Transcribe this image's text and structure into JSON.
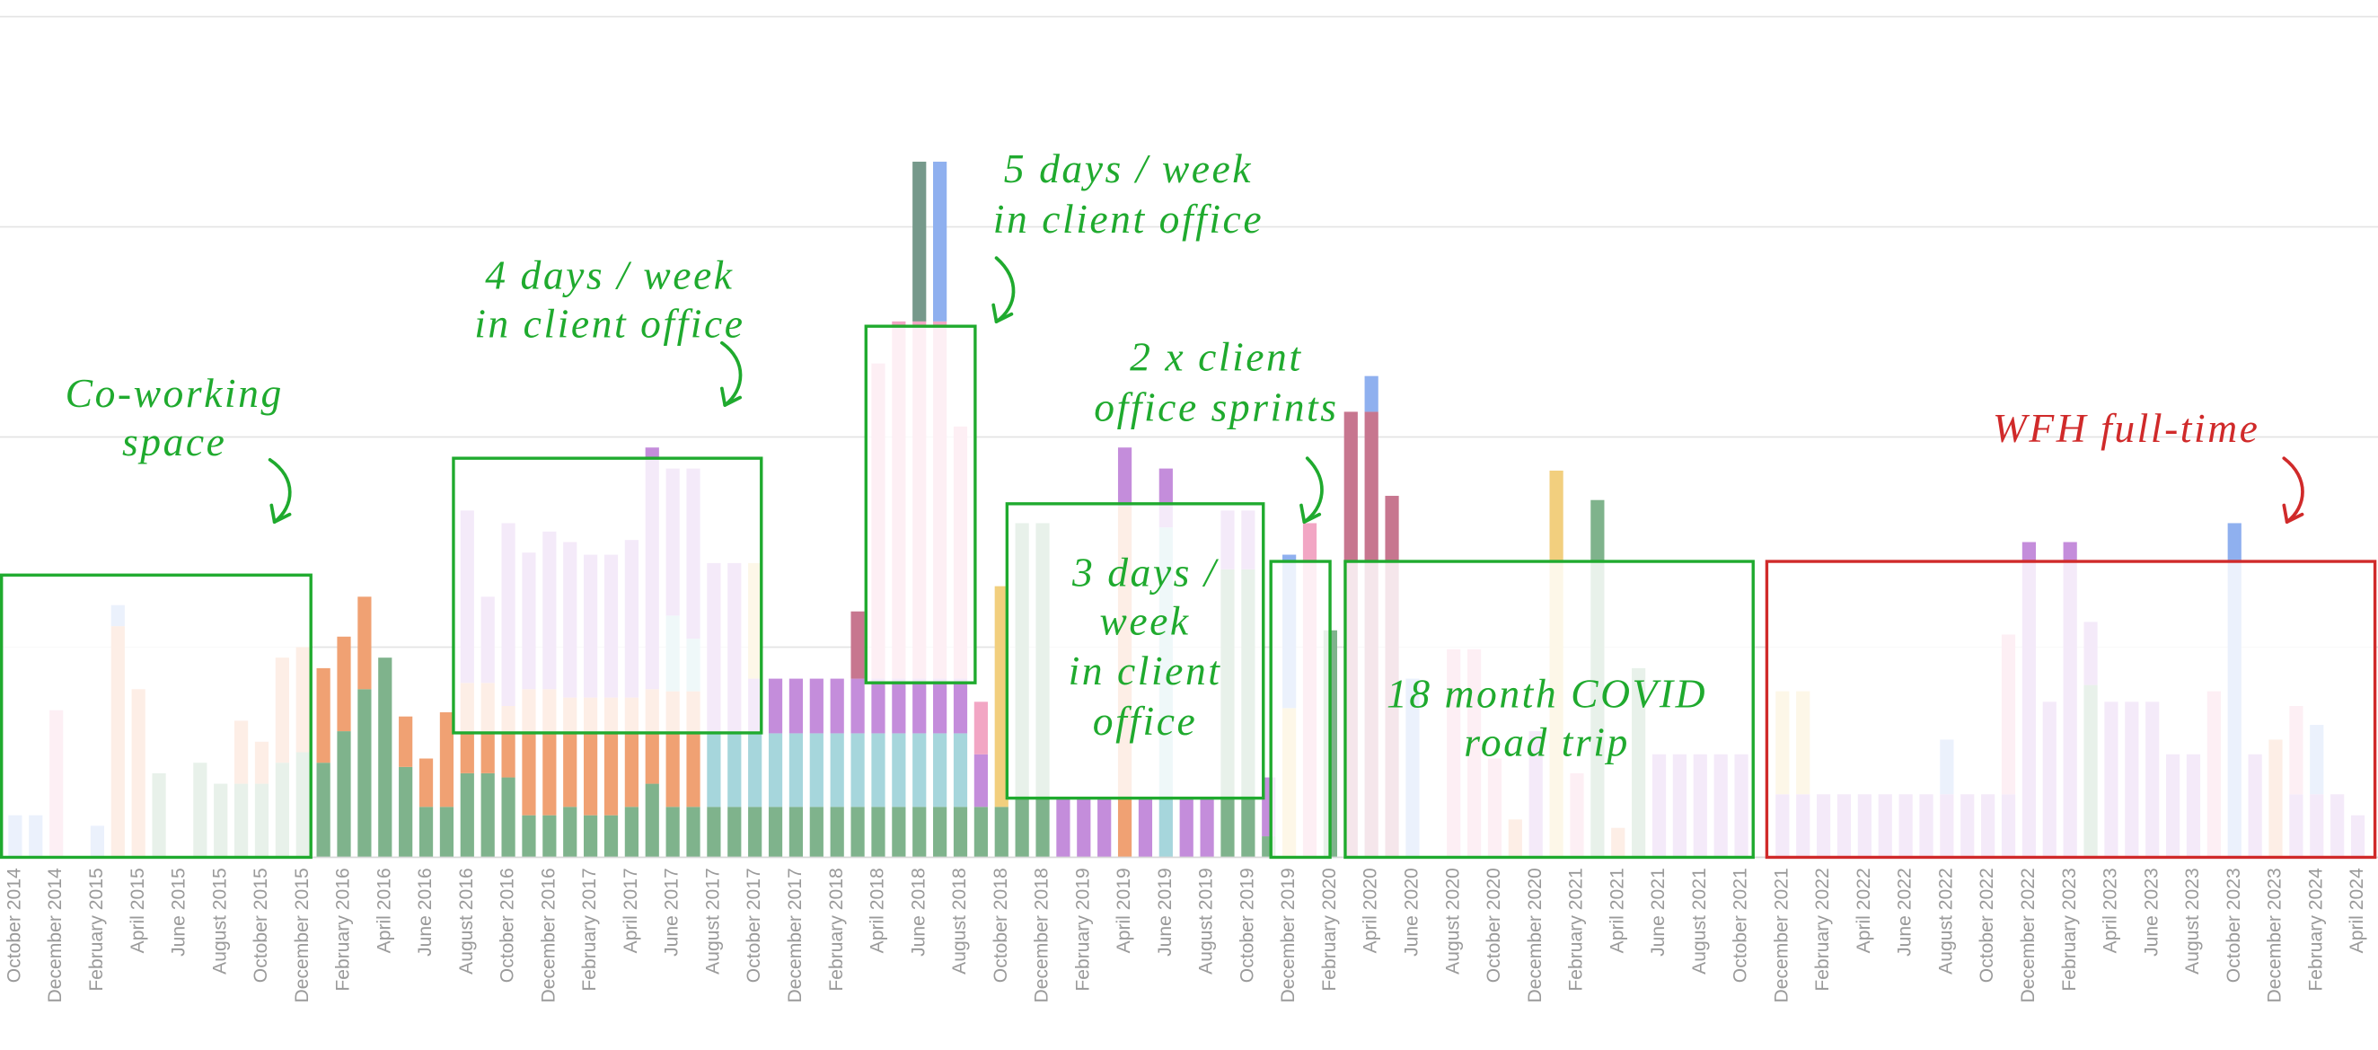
{
  "chart_data": {
    "type": "bar",
    "stacked": true,
    "categories": [
      "October 2014",
      null,
      "December 2014",
      null,
      "February 2015",
      null,
      "April 2015",
      null,
      "June 2015",
      null,
      "August 2015",
      null,
      "October 2015",
      null,
      "December 2015",
      null,
      "February 2016",
      null,
      "April 2016",
      null,
      "June 2016",
      null,
      "August 2016",
      null,
      "October 2016",
      null,
      "December 2016",
      null,
      "February 2017",
      null,
      "April 2017",
      null,
      "June 2017",
      null,
      "August 2017",
      null,
      "October 2017",
      null,
      "December 2017",
      null,
      "February 2018",
      null,
      "April 2018",
      null,
      "June 2018",
      null,
      "August 2018",
      null,
      "October 2018",
      null,
      "December 2018",
      null,
      "February 2019",
      null,
      "April 2019",
      null,
      "June 2019",
      null,
      "August 2019",
      null,
      "October 2019",
      null,
      "December 2019",
      null,
      "February 2020",
      null,
      "April 2020",
      null,
      "June 2020",
      null,
      "August 2020",
      null,
      "October 2020",
      null,
      "December 2020",
      null,
      "February 2021",
      null,
      "April 2021",
      null,
      "June 2021",
      null,
      "August 2021",
      null,
      "October 2021",
      null,
      "December 2021",
      null,
      "February 2022",
      null,
      "April 2022",
      null,
      "June 2022",
      null,
      "August 2022",
      null,
      "October 2022",
      null,
      "December 2022",
      null,
      "February 2023",
      null,
      "April 2023",
      null,
      "June 2023",
      null,
      "August 2023",
      null,
      "October 2023",
      null,
      "December 2023",
      null,
      "February 2024",
      null,
      "April 2024"
    ],
    "series": [
      {
        "color": "#7fb38c",
        "values": [
          0,
          0,
          0,
          0,
          0,
          0,
          0,
          4,
          0,
          4.5,
          3.5,
          3.5,
          3.5,
          4.5,
          5,
          4.5,
          6,
          8,
          9.5,
          4.3,
          2.4,
          2.4,
          4,
          4,
          3.8,
          2,
          2,
          2.4,
          2,
          2,
          2.4,
          3.5,
          2.4,
          2.4,
          2.4,
          2.4,
          2.4,
          2.4,
          2.4,
          2.4,
          2.4,
          2.4,
          2.4,
          2.4,
          2.4,
          2.4,
          2.4,
          2.4,
          2.4,
          15.9,
          15.9,
          0,
          0,
          0,
          0,
          0,
          0,
          0,
          0,
          13.7,
          13.7,
          1,
          0,
          0,
          10.8,
          0,
          0,
          0,
          0,
          0,
          0,
          0,
          0,
          0,
          0,
          0,
          0,
          17,
          0,
          9,
          0,
          0,
          0,
          0,
          0,
          0,
          0,
          0,
          0,
          0,
          0,
          0,
          0,
          0,
          0,
          0,
          0,
          0,
          0,
          0,
          0,
          8.2,
          0,
          0,
          0,
          0,
          0,
          0,
          0,
          0,
          0,
          0,
          0,
          0,
          0
        ]
      },
      {
        "color": "#f0a173",
        "values": [
          0,
          0,
          0,
          0,
          0,
          11,
          8,
          0,
          0,
          0,
          0,
          3,
          2,
          5,
          5,
          4.5,
          4.5,
          4.4,
          0,
          2.4,
          2.3,
          4.5,
          4.3,
          4.3,
          3.4,
          6,
          6,
          5.2,
          5.6,
          5.6,
          5.2,
          4.5,
          5.5,
          5.5,
          0,
          0,
          0,
          0,
          0,
          0,
          0,
          0,
          0,
          0,
          0,
          0,
          0,
          0,
          0,
          0,
          0,
          0,
          0,
          0,
          16.7,
          0,
          0,
          0,
          0,
          0,
          0,
          0,
          0,
          0,
          0,
          0,
          0,
          0,
          0,
          0,
          0,
          0,
          0,
          1.8,
          0,
          0,
          0,
          0,
          1.4,
          0,
          0,
          0,
          0,
          0,
          0,
          0,
          0,
          0,
          0,
          0,
          0,
          0,
          0,
          0,
          0,
          0,
          0,
          0,
          0,
          0,
          0,
          0,
          0,
          0,
          0,
          0,
          0,
          0,
          0,
          0,
          5.6,
          0,
          0,
          0,
          0
        ]
      },
      {
        "color": "#a6d6dc",
        "values": [
          0,
          0,
          0,
          0,
          0,
          0,
          0,
          0,
          0,
          0,
          0,
          0,
          0,
          0,
          0,
          0,
          0,
          0,
          0,
          0,
          0,
          0,
          0,
          0,
          0,
          0,
          0,
          0,
          0,
          0,
          0,
          0,
          3.6,
          2.5,
          3.5,
          3.5,
          3.5,
          3.5,
          3.5,
          3.5,
          3.5,
          3.5,
          3.5,
          3.5,
          3.5,
          3.5,
          3.5,
          0,
          0,
          0,
          0,
          0,
          0,
          0,
          0,
          0,
          15.7,
          0,
          0,
          0,
          0,
          0,
          0,
          0,
          0,
          0,
          0,
          0,
          0,
          0,
          0,
          0,
          0,
          0,
          0,
          0,
          0,
          0,
          0,
          0,
          0,
          0,
          0,
          0,
          0,
          0,
          0,
          0,
          0,
          0,
          0,
          0,
          0,
          0,
          0,
          0,
          0,
          0,
          0,
          0,
          0,
          0,
          0,
          0,
          0,
          0,
          0,
          0,
          0,
          0,
          0,
          0,
          0,
          0,
          0
        ]
      },
      {
        "color": "#c48ddb",
        "values": [
          0,
          0,
          0,
          0,
          0,
          0,
          0,
          0,
          0,
          0,
          0,
          0,
          0,
          0,
          0,
          0,
          0,
          0,
          0,
          0,
          0,
          0,
          8.2,
          4.1,
          8.7,
          6.5,
          7.5,
          7.4,
          6.8,
          6.8,
          7.5,
          11.5,
          7,
          8.1,
          8.1,
          8.1,
          2.6,
          2.6,
          2.6,
          2.6,
          2.6,
          2.6,
          2.6,
          2.6,
          2.6,
          2.6,
          2.6,
          2.5,
          0,
          0,
          0,
          2.8,
          2.8,
          2.8,
          2.8,
          2.8,
          2.8,
          2.8,
          2.8,
          2.8,
          2.8,
          2.8,
          0,
          0,
          0,
          0,
          0,
          0,
          0,
          0,
          0,
          0,
          0,
          0,
          6,
          0,
          0,
          0,
          0,
          0,
          4.9,
          4.9,
          4.9,
          4.9,
          4.9,
          0,
          3,
          3,
          3,
          3,
          3,
          3,
          3,
          3,
          3,
          3,
          3,
          3,
          15,
          7.4,
          15,
          3,
          7.4,
          7.4,
          7.4,
          4.9,
          4.9,
          0,
          0,
          4.9,
          0,
          3,
          3,
          3,
          2
        ]
      },
      {
        "color": "#f2a6c4",
        "values": [
          0,
          0,
          7,
          0,
          0,
          0,
          0,
          0,
          0,
          0,
          0,
          0,
          0,
          0,
          0,
          0,
          0,
          0,
          0,
          0,
          0,
          0,
          0,
          0,
          0,
          0,
          0,
          0,
          0,
          0,
          0,
          0,
          0,
          0,
          0,
          0,
          0,
          0,
          0,
          0,
          0,
          0,
          15,
          17,
          17,
          17,
          12,
          2.5,
          0,
          0,
          0,
          0,
          0,
          0,
          0,
          0,
          0,
          0,
          0,
          0,
          0,
          0,
          0,
          15.9,
          0,
          0,
          0,
          0,
          0,
          0,
          9.9,
          9.9,
          4.7,
          0,
          0,
          0,
          4,
          0,
          0,
          0,
          0,
          0,
          0,
          0,
          0,
          0,
          0,
          0,
          0,
          0,
          0,
          0,
          0,
          0,
          0,
          0,
          0,
          7.6,
          0,
          0,
          0,
          0,
          0,
          0,
          0,
          0,
          0,
          7.9,
          0,
          0,
          0,
          4.2,
          0,
          0,
          0
        ]
      },
      {
        "color": "#f2cf7e",
        "values": [
          0,
          0,
          0,
          0,
          0,
          0,
          0,
          0,
          0,
          0,
          0,
          0,
          0,
          0,
          0,
          0,
          0,
          0,
          0,
          0,
          0,
          0,
          0,
          0,
          0,
          0,
          0,
          0,
          0,
          0,
          0,
          0,
          0,
          0,
          0,
          0,
          5.5,
          0,
          0,
          0,
          0,
          0,
          0,
          0,
          0,
          0,
          0,
          0,
          10.5,
          0,
          0,
          0,
          0,
          0,
          0,
          0,
          0,
          0,
          0,
          0,
          0,
          0,
          7.1,
          0,
          0,
          0,
          0,
          0,
          0,
          0,
          0,
          0,
          0,
          0,
          0,
          18.4,
          0,
          0,
          0,
          0,
          0,
          0,
          0,
          0,
          0,
          0,
          4.9,
          4.9,
          0,
          0,
          0,
          0,
          0,
          0,
          0,
          0,
          0,
          0,
          0,
          0,
          0,
          0,
          0,
          0,
          0,
          0,
          0,
          0,
          0,
          0,
          0,
          0,
          0,
          0,
          0
        ]
      },
      {
        "color": "#c7768f",
        "values": [
          0,
          0,
          0,
          0,
          0,
          0,
          0,
          0,
          0,
          0,
          0,
          0,
          0,
          0,
          0,
          0,
          0,
          0,
          0,
          0,
          0,
          0,
          0,
          0,
          0,
          0,
          0,
          0,
          0,
          0,
          0,
          0,
          0,
          0,
          0,
          0,
          0,
          0,
          0,
          0,
          0,
          3.2,
          0,
          0,
          0,
          0,
          0,
          0,
          0,
          0,
          0,
          0,
          0,
          0,
          0,
          0,
          0,
          0,
          0,
          0,
          0,
          0,
          0,
          0,
          0,
          21.2,
          21.2,
          17.2,
          0,
          0,
          0,
          0,
          0,
          0,
          0,
          0,
          0,
          0,
          0,
          0,
          0,
          0,
          0,
          0,
          0,
          0,
          0,
          0,
          0,
          0,
          0,
          0,
          0,
          0,
          0,
          0,
          0,
          0,
          0,
          0,
          0,
          0,
          0,
          0,
          0,
          0,
          0,
          0,
          0,
          0,
          0,
          0,
          0,
          0,
          0
        ]
      },
      {
        "color": "#8fb0ef",
        "values": [
          2,
          2,
          0,
          0,
          1.5,
          1,
          0,
          0,
          0,
          0,
          0,
          0,
          0,
          0,
          0,
          0,
          0,
          0,
          0,
          0,
          0,
          0,
          0,
          0,
          0,
          0,
          0,
          0,
          0,
          0,
          0,
          0,
          0,
          0,
          0,
          0,
          0,
          0,
          0,
          0,
          0,
          0,
          0,
          0,
          0,
          7.6,
          0,
          0,
          0,
          0,
          0,
          0,
          0,
          0,
          0,
          0,
          0,
          0,
          0,
          0,
          0,
          0,
          7.3,
          0,
          0,
          0,
          1.7,
          0,
          8.5,
          0,
          0,
          0,
          0,
          0,
          0,
          0,
          0,
          0,
          0,
          0,
          0,
          0,
          0,
          0,
          0,
          0,
          0,
          0,
          0,
          0,
          0,
          0,
          0,
          0,
          2.6,
          0,
          0,
          0,
          0,
          0,
          0,
          0,
          0,
          0,
          0,
          0,
          0,
          0,
          15.9,
          0,
          0,
          0,
          3.3,
          0,
          0
        ]
      },
      {
        "color": "#76998b",
        "values": [
          0,
          0,
          0,
          0,
          0,
          0,
          0,
          0,
          0,
          0,
          0,
          0,
          0,
          0,
          0,
          0,
          0,
          0,
          0,
          0,
          0,
          0,
          0,
          0,
          0,
          0,
          0,
          0,
          0,
          0,
          0,
          0,
          0,
          0,
          0,
          0,
          0,
          0,
          0,
          0,
          0,
          0,
          0,
          0,
          7.6,
          0,
          0,
          0,
          0,
          0,
          0,
          0,
          0,
          0,
          0,
          0,
          0,
          0,
          0,
          0,
          0,
          0,
          0,
          0,
          0,
          0,
          0,
          0,
          0,
          0,
          0,
          0,
          0,
          0,
          0,
          0,
          0,
          0,
          0,
          0,
          0,
          0,
          0,
          0,
          0,
          0,
          0,
          0,
          0,
          0,
          0,
          0,
          0,
          0,
          0,
          0,
          0,
          0,
          0,
          0,
          0,
          0,
          0,
          0,
          0,
          0,
          0,
          0,
          0,
          0,
          0,
          0,
          0,
          0,
          0
        ]
      }
    ],
    "ylim": [
      0,
      40
    ],
    "yticks": [
      0,
      10,
      20,
      30,
      40
    ],
    "grid": true,
    "annotations": [
      {
        "lines": [
          "Co-working",
          "space"
        ],
        "color": "#1faa2e"
      },
      {
        "lines": [
          "4 days / week",
          "in client office"
        ],
        "color": "#1faa2e"
      },
      {
        "lines": [
          "5 days / week",
          "in client office"
        ],
        "color": "#1faa2e"
      },
      {
        "lines": [
          "2 x client",
          "office sprints"
        ],
        "color": "#1faa2e"
      },
      {
        "lines": [
          "3 days /",
          "week",
          "in client",
          "office"
        ],
        "color": "#1faa2e"
      },
      {
        "lines": [
          "18 month COVID",
          "road trip"
        ],
        "color": "#1faa2e"
      },
      {
        "lines": [
          "WFH full-time"
        ],
        "color": "#d02a2a"
      }
    ]
  }
}
